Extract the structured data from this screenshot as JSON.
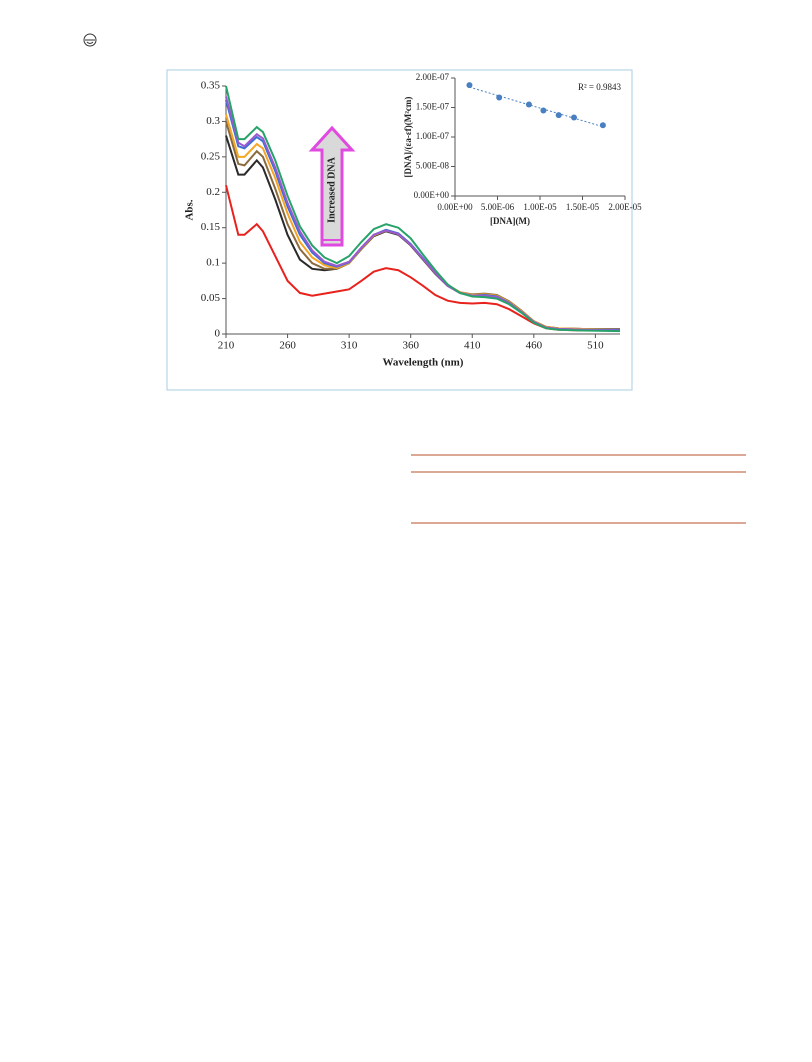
{
  "chart_data": [
    {
      "type": "line",
      "xlabel": "Wavelength (nm)",
      "ylabel": "Abs.",
      "annotation": "Increased DNA",
      "xlim": [
        210,
        530
      ],
      "xticks": [
        210,
        260,
        310,
        360,
        410,
        460,
        510
      ],
      "ylim": [
        0,
        0.35
      ],
      "yticks": [
        0,
        0.05,
        0.1,
        0.15,
        0.2,
        0.25,
        0.3,
        0.35
      ],
      "x": [
        210,
        220,
        225,
        235,
        240,
        250,
        260,
        270,
        280,
        290,
        300,
        310,
        320,
        330,
        340,
        350,
        360,
        370,
        380,
        390,
        400,
        410,
        420,
        430,
        440,
        450,
        460,
        470,
        480,
        500,
        530
      ],
      "series": [
        {
          "color": "#e8221c",
          "values": [
            0.21,
            0.14,
            0.14,
            0.155,
            0.145,
            0.11,
            0.075,
            0.058,
            0.054,
            0.057,
            0.06,
            0.063,
            0.075,
            0.088,
            0.093,
            0.09,
            0.08,
            0.068,
            0.055,
            0.047,
            0.044,
            0.043,
            0.044,
            0.042,
            0.035,
            0.025,
            0.015,
            0.008,
            0.006,
            0.005,
            0.005
          ]
        },
        {
          "color": "#2a2a2a",
          "values": [
            0.28,
            0.225,
            0.225,
            0.245,
            0.235,
            0.19,
            0.14,
            0.105,
            0.092,
            0.09,
            0.092,
            0.1,
            0.12,
            0.138,
            0.145,
            0.14,
            0.125,
            0.105,
            0.085,
            0.068,
            0.058,
            0.055,
            0.056,
            0.054,
            0.045,
            0.032,
            0.018,
            0.01,
            0.008,
            0.007,
            0.007
          ]
        },
        {
          "color": "#8b6a3e",
          "values": [
            0.3,
            0.24,
            0.238,
            0.258,
            0.25,
            0.205,
            0.155,
            0.12,
            0.1,
            0.092,
            0.092,
            0.1,
            0.121,
            0.139,
            0.146,
            0.141,
            0.126,
            0.106,
            0.086,
            0.069,
            0.059,
            0.056,
            0.057,
            0.055,
            0.046,
            0.033,
            0.018,
            0.01,
            0.008,
            0.007,
            0.007
          ]
        },
        {
          "color": "#f5a623",
          "values": [
            0.31,
            0.25,
            0.25,
            0.268,
            0.262,
            0.22,
            0.17,
            0.13,
            0.108,
            0.097,
            0.093,
            0.1,
            0.121,
            0.139,
            0.146,
            0.141,
            0.126,
            0.106,
            0.086,
            0.069,
            0.059,
            0.055,
            0.056,
            0.054,
            0.045,
            0.032,
            0.018,
            0.01,
            0.008,
            0.007,
            0.006
          ]
        },
        {
          "color": "#3c6fd1",
          "values": [
            0.33,
            0.265,
            0.262,
            0.278,
            0.272,
            0.23,
            0.18,
            0.14,
            0.115,
            0.1,
            0.095,
            0.101,
            0.122,
            0.14,
            0.147,
            0.142,
            0.127,
            0.107,
            0.087,
            0.069,
            0.058,
            0.054,
            0.055,
            0.053,
            0.044,
            0.031,
            0.017,
            0.009,
            0.007,
            0.006,
            0.006
          ]
        },
        {
          "color": "#9b59d0",
          "values": [
            0.335,
            0.27,
            0.265,
            0.282,
            0.276,
            0.235,
            0.185,
            0.145,
            0.118,
            0.102,
            0.096,
            0.102,
            0.122,
            0.14,
            0.146,
            0.141,
            0.126,
            0.106,
            0.086,
            0.068,
            0.058,
            0.054,
            0.054,
            0.052,
            0.043,
            0.031,
            0.017,
            0.009,
            0.007,
            0.006,
            0.005
          ]
        },
        {
          "color": "#27a36a",
          "values": [
            0.35,
            0.275,
            0.275,
            0.292,
            0.285,
            0.245,
            0.195,
            0.152,
            0.125,
            0.108,
            0.1,
            0.11,
            0.13,
            0.148,
            0.155,
            0.15,
            0.135,
            0.112,
            0.09,
            0.07,
            0.058,
            0.053,
            0.052,
            0.05,
            0.042,
            0.03,
            0.016,
            0.008,
            0.006,
            0.005,
            0.004
          ]
        }
      ]
    },
    {
      "type": "scatter",
      "xlabel": "[DNA](M)",
      "ylabel": "[DNA]/(εa-εf)(M²cm)",
      "annotation": "R² = 0.9843",
      "xlim": [
        0,
        2e-05
      ],
      "xticks": [
        {
          "value": 0,
          "label": "0.00E+00"
        },
        {
          "value": 5e-06,
          "label": "5.00E-06"
        },
        {
          "value": 1e-05,
          "label": "1.00E-05"
        },
        {
          "value": 1.5e-05,
          "label": "1.50E-05"
        },
        {
          "value": 2e-05,
          "label": "2.00E-05"
        }
      ],
      "ylim": [
        0,
        2e-07
      ],
      "yticks": [
        {
          "value": 0,
          "label": "0.00E+00"
        },
        {
          "value": 5e-08,
          "label": "5.00E-08"
        },
        {
          "value": 1e-07,
          "label": "1.00E-07"
        },
        {
          "value": 1.5e-07,
          "label": "1.50E-07"
        },
        {
          "value": 2e-07,
          "label": "2.00E-07"
        }
      ],
      "color": "#4a7fc1",
      "trendline": true,
      "x": [
        1.7e-06,
        5.2e-06,
        8.7e-06,
        1.04e-05,
        1.22e-05,
        1.4e-05,
        1.74e-05
      ],
      "values": [
        1.88e-07,
        1.67e-07,
        1.55e-07,
        1.45e-07,
        1.37e-07,
        1.33e-07,
        1.2e-07
      ]
    }
  ]
}
